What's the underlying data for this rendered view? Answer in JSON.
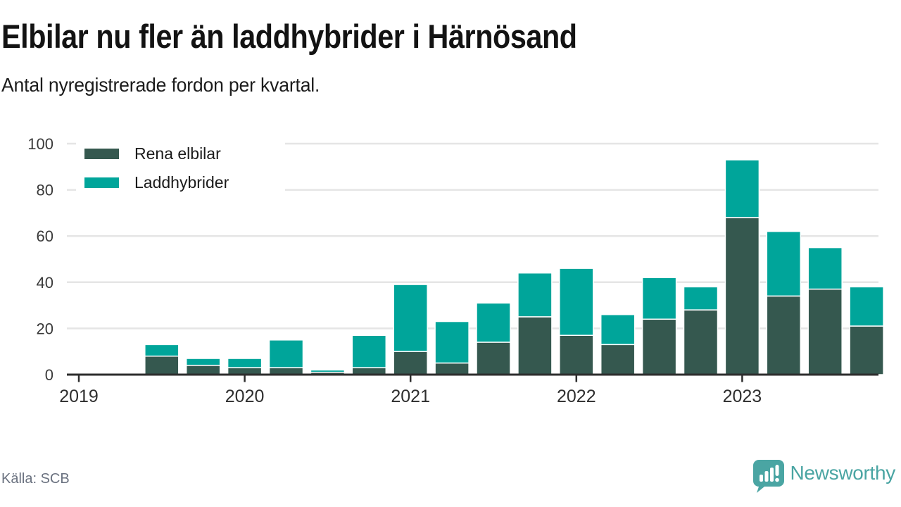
{
  "header": {
    "title": "Elbilar nu fler än laddhybrider i Härnösand",
    "subtitle": "Antal nyregistrerade fordon per kvartal."
  },
  "footer": {
    "source": "Källa: SCB",
    "brand": "Newsworthy",
    "brand_color": "#4aa5a3"
  },
  "chart_data": {
    "type": "bar",
    "stacked": true,
    "title": "Elbilar nu fler än laddhybrider i Härnösand",
    "subtitle": "Antal nyregistrerade fordon per kvartal.",
    "categories": [
      "2019 Q2",
      "2019 Q3",
      "2019 Q4",
      "2020 Q1",
      "2020 Q2",
      "2020 Q3",
      "2020 Q4",
      "2021 Q1",
      "2021 Q2",
      "2021 Q3",
      "2021 Q4",
      "2022 Q1",
      "2022 Q2",
      "2022 Q3",
      "2022 Q4",
      "2023 Q1",
      "2023 Q2",
      "2023 Q3"
    ],
    "series": [
      {
        "name": "Rena elbilar",
        "color": "#35584f",
        "values": [
          8,
          4,
          3,
          3,
          1,
          3,
          10,
          5,
          14,
          25,
          17,
          13,
          24,
          28,
          68,
          34,
          37,
          21
        ]
      },
      {
        "name": "Laddhybrider",
        "color": "#00a59a",
        "values": [
          5,
          3,
          4,
          12,
          1,
          14,
          29,
          18,
          17,
          19,
          29,
          13,
          18,
          10,
          25,
          28,
          18,
          17
        ]
      }
    ],
    "x_tick_labels": [
      "2019",
      "2020",
      "2021",
      "2022",
      "2023"
    ],
    "y_ticks": [
      0,
      20,
      40,
      60,
      80,
      100
    ],
    "ylim": [
      0,
      100
    ],
    "grid": true,
    "legend_position": "top-left",
    "axis_color": "#2d2d2d",
    "grid_color": "#e5e5e5",
    "tick_label_color": "#3a3a3a",
    "source": "SCB"
  }
}
